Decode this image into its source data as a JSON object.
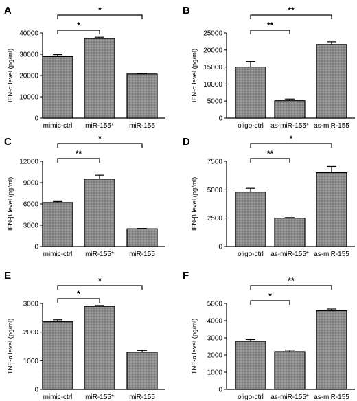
{
  "colors": {
    "bar_fill": "#8c8c8c",
    "bar_pattern_dark": "#7a7a7a",
    "bar_pattern_light": "#9c9c9c",
    "stroke": "#000000"
  },
  "chart_data": [
    {
      "type": "bar",
      "panel": "A",
      "ylabel": "IFN-α  level (pg/ml)",
      "categories": [
        "mimic-ctrl",
        "miR-155*",
        "miR-155"
      ],
      "values": [
        28900,
        37400,
        20700
      ],
      "errors": [
        900,
        600,
        300
      ],
      "ylim": [
        0,
        40000
      ],
      "yticks": [
        "0",
        "10000",
        "20000",
        "30000",
        "40000"
      ],
      "brackets": [
        {
          "from": 0,
          "to": 1,
          "label": "*"
        },
        {
          "from": 0,
          "to": 2,
          "label": "*"
        }
      ]
    },
    {
      "type": "bar",
      "panel": "B",
      "ylabel": "IFN-α  level (pg/ml)",
      "categories": [
        "oligo-ctrl",
        "as-miR-155*",
        "as-miR-155"
      ],
      "values": [
        15000,
        5100,
        21600
      ],
      "errors": [
        1600,
        500,
        800
      ],
      "ylim": [
        0,
        25000
      ],
      "yticks": [
        "0",
        "5000",
        "10000",
        "15000",
        "20000",
        "25000"
      ],
      "brackets": [
        {
          "from": 0,
          "to": 1,
          "label": "**"
        },
        {
          "from": 0,
          "to": 2,
          "label": "**"
        }
      ]
    },
    {
      "type": "bar",
      "panel": "C",
      "ylabel": "IFN-β  level (pg/ml)",
      "categories": [
        "mimic-ctrl",
        "miR-155*",
        "miR-155"
      ],
      "values": [
        6200,
        9500,
        2500
      ],
      "errors": [
        150,
        550,
        50
      ],
      "ylim": [
        0,
        12000
      ],
      "yticks": [
        "0",
        "3000",
        "6000",
        "9000",
        "12000"
      ],
      "brackets": [
        {
          "from": 0,
          "to": 1,
          "label": "**"
        },
        {
          "from": 0,
          "to": 2,
          "label": "*"
        }
      ]
    },
    {
      "type": "bar",
      "panel": "D",
      "ylabel": "IFN-β  level (pg/ml)",
      "categories": [
        "oligo-ctrl",
        "as-miR-155*",
        "as-miR-155"
      ],
      "values": [
        4800,
        2500,
        6500
      ],
      "errors": [
        330,
        50,
        550
      ],
      "ylim": [
        0,
        7500
      ],
      "yticks": [
        "0",
        "2500",
        "5000",
        "7500"
      ],
      "brackets": [
        {
          "from": 0,
          "to": 1,
          "label": "**"
        },
        {
          "from": 0,
          "to": 2,
          "label": "*"
        }
      ]
    },
    {
      "type": "bar",
      "panel": "E",
      "ylabel": "TNF-α  level (pg/ml)",
      "categories": [
        "mimic-ctrl",
        "miR-155*",
        "miR-155"
      ],
      "values": [
        2360,
        2900,
        1300
      ],
      "errors": [
        70,
        30,
        60
      ],
      "ylim": [
        0,
        3000
      ],
      "yticks": [
        "0",
        "1000",
        "2000",
        "3000"
      ],
      "brackets": [
        {
          "from": 0,
          "to": 1,
          "label": "*"
        },
        {
          "from": 0,
          "to": 2,
          "label": "*"
        }
      ]
    },
    {
      "type": "bar",
      "panel": "F",
      "ylabel": "TNF-α  level (pg/ml)",
      "categories": [
        "oligo-ctrl",
        "as-miR-155*",
        "as-miR-155"
      ],
      "values": [
        2800,
        2200,
        4580
      ],
      "errors": [
        100,
        90,
        100
      ],
      "ylim": [
        0,
        5000
      ],
      "yticks": [
        "0",
        "1000",
        "2000",
        "3000",
        "4000",
        "5000"
      ],
      "brackets": [
        {
          "from": 0,
          "to": 1,
          "label": "*"
        },
        {
          "from": 0,
          "to": 2,
          "label": "**"
        }
      ]
    }
  ]
}
